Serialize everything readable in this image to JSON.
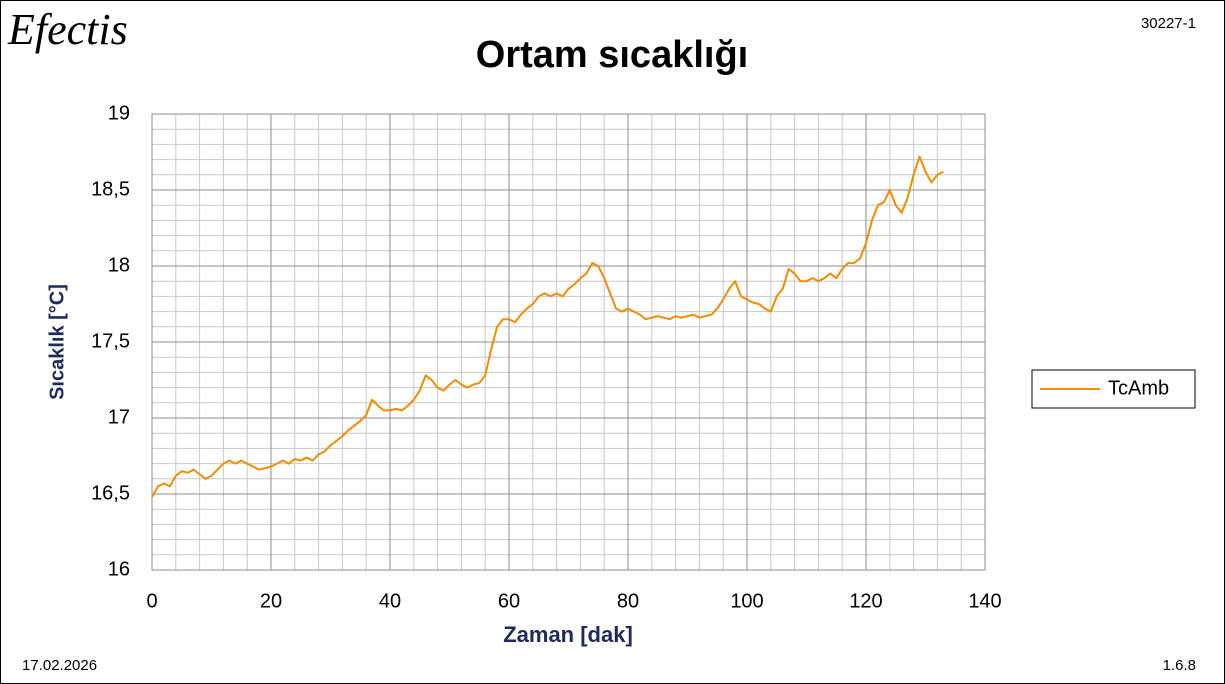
{
  "header": {
    "logo": "Efectis",
    "code": "30227-1",
    "date": "17.02.2026",
    "page": "1.6.8"
  },
  "chart_data": {
    "type": "line",
    "title": "Ortam sıcaklığı",
    "x_label": "Zaman [dak]",
    "y_label": "Sıcaklık [°C]",
    "xlim": [
      0,
      140
    ],
    "xticks": [
      0,
      20,
      40,
      60,
      80,
      100,
      120,
      140
    ],
    "ylim": [
      16,
      19
    ],
    "yticks": [
      16,
      {
        "value": 16.5,
        "label": "16,5"
      },
      17,
      {
        "value": 17.5,
        "label": "17,5"
      },
      18,
      {
        "value": 18.5,
        "label": "18,5"
      },
      19
    ],
    "grid": true,
    "legend": "right",
    "x": [
      0,
      1,
      2,
      3,
      4,
      5,
      6,
      7,
      8,
      9,
      10,
      11,
      12,
      13,
      14,
      15,
      16,
      17,
      18,
      19,
      20,
      21,
      22,
      23,
      24,
      25,
      26,
      27,
      28,
      29,
      30,
      31,
      32,
      33,
      34,
      35,
      36,
      37,
      38,
      39,
      40,
      41,
      42,
      43,
      44,
      45,
      46,
      47,
      48,
      49,
      50,
      51,
      52,
      53,
      54,
      55,
      56,
      57,
      58,
      59,
      60,
      61,
      62,
      63,
      64,
      65,
      66,
      67,
      68,
      69,
      70,
      71,
      72,
      73,
      74,
      75,
      76,
      77,
      78,
      79,
      80,
      81,
      82,
      83,
      84,
      85,
      86,
      87,
      88,
      89,
      90,
      91,
      92,
      93,
      94,
      95,
      96,
      97,
      98,
      99,
      100,
      101,
      102,
      103,
      104,
      105,
      106,
      107,
      108,
      109,
      110,
      111,
      112,
      113,
      114,
      115,
      116,
      117,
      118,
      119,
      120,
      121,
      122,
      123,
      124,
      125,
      126,
      127,
      128,
      129,
      130,
      131,
      132,
      133
    ],
    "series": [
      {
        "name": "TcAmb",
        "color": "#f28c00",
        "values": [
          16.48,
          16.55,
          16.57,
          16.55,
          16.62,
          16.65,
          16.64,
          16.66,
          16.63,
          16.6,
          16.62,
          16.66,
          16.7,
          16.72,
          16.7,
          16.72,
          16.7,
          16.68,
          16.66,
          16.67,
          16.68,
          16.7,
          16.72,
          16.7,
          16.73,
          16.72,
          16.74,
          16.72,
          16.76,
          16.78,
          16.82,
          16.85,
          16.88,
          16.92,
          16.95,
          16.98,
          17.02,
          17.12,
          17.08,
          17.05,
          17.05,
          17.06,
          17.05,
          17.08,
          17.12,
          17.18,
          17.28,
          17.25,
          17.2,
          17.18,
          17.22,
          17.25,
          17.22,
          17.2,
          17.22,
          17.23,
          17.28,
          17.45,
          17.6,
          17.65,
          17.65,
          17.63,
          17.68,
          17.72,
          17.75,
          17.8,
          17.82,
          17.8,
          17.82,
          17.8,
          17.85,
          17.88,
          17.92,
          17.95,
          18.02,
          18.0,
          17.92,
          17.82,
          17.72,
          17.7,
          17.72,
          17.7,
          17.68,
          17.65,
          17.66,
          17.67,
          17.66,
          17.65,
          17.67,
          17.66,
          17.67,
          17.68,
          17.66,
          17.67,
          17.68,
          17.72,
          17.78,
          17.85,
          17.9,
          17.8,
          17.78,
          17.76,
          17.75,
          17.72,
          17.7,
          17.8,
          17.85,
          17.98,
          17.95,
          17.9,
          17.9,
          17.92,
          17.9,
          17.92,
          17.95,
          17.92,
          17.98,
          18.02,
          18.02,
          18.05,
          18.15,
          18.3,
          18.4,
          18.42,
          18.5,
          18.4,
          18.35,
          18.45,
          18.6,
          18.72,
          18.62,
          18.55,
          18.6,
          18.62
        ]
      }
    ]
  }
}
